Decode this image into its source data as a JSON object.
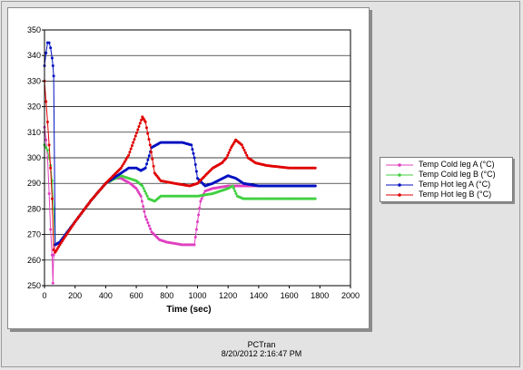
{
  "footer": {
    "app_name": "PCTran",
    "timestamp": "8/20/2012 2:16:47 PM"
  },
  "chart_data": {
    "type": "line",
    "title": "",
    "xlabel": "Time (sec)",
    "ylabel": "",
    "xlim": [
      0,
      2000
    ],
    "ylim": [
      250,
      350
    ],
    "xticks": [
      0,
      200,
      400,
      600,
      800,
      1000,
      1200,
      1400,
      1600,
      1800,
      2000
    ],
    "yticks": [
      250,
      260,
      270,
      280,
      290,
      300,
      310,
      320,
      330,
      340,
      350
    ],
    "grid": "horizontal",
    "legend_position": "right",
    "series": [
      {
        "name": "Temp Cold leg A (°C)",
        "color": "#e040c0",
        "marker": "dot",
        "points": [
          [
            0,
            312
          ],
          [
            10,
            307
          ],
          [
            20,
            300
          ],
          [
            30,
            286
          ],
          [
            40,
            272
          ],
          [
            50,
            262
          ],
          [
            55,
            251
          ],
          [
            60,
            262
          ],
          [
            70,
            266
          ],
          [
            100,
            267
          ],
          [
            200,
            275
          ],
          [
            300,
            283
          ],
          [
            400,
            290
          ],
          [
            450,
            292
          ],
          [
            500,
            292
          ],
          [
            560,
            290
          ],
          [
            600,
            288
          ],
          [
            630,
            285
          ],
          [
            660,
            277
          ],
          [
            700,
            271
          ],
          [
            750,
            268
          ],
          [
            800,
            267
          ],
          [
            900,
            266
          ],
          [
            980,
            266
          ],
          [
            1000,
            275
          ],
          [
            1020,
            283
          ],
          [
            1050,
            287
          ],
          [
            1100,
            288
          ],
          [
            1200,
            289
          ],
          [
            1300,
            289
          ],
          [
            1400,
            289
          ],
          [
            1600,
            289
          ],
          [
            1770,
            289
          ]
        ]
      },
      {
        "name": "Temp Cold leg B (°C)",
        "color": "#40d040",
        "marker": "dot",
        "points": [
          [
            0,
            305
          ],
          [
            10,
            304
          ],
          [
            20,
            303
          ],
          [
            30,
            300
          ],
          [
            40,
            297
          ],
          [
            50,
            291
          ],
          [
            60,
            280
          ],
          [
            70,
            266
          ],
          [
            100,
            267
          ],
          [
            200,
            275
          ],
          [
            300,
            283
          ],
          [
            400,
            290
          ],
          [
            500,
            293
          ],
          [
            550,
            292
          ],
          [
            600,
            291
          ],
          [
            640,
            289
          ],
          [
            680,
            284
          ],
          [
            720,
            283
          ],
          [
            760,
            285
          ],
          [
            850,
            285
          ],
          [
            1000,
            285
          ],
          [
            1100,
            286
          ],
          [
            1200,
            288
          ],
          [
            1230,
            289
          ],
          [
            1260,
            285
          ],
          [
            1300,
            284
          ],
          [
            1500,
            284
          ],
          [
            1770,
            284
          ]
        ]
      },
      {
        "name": "Temp Hot leg A (°C)",
        "color": "#0010c0",
        "marker": "dot",
        "points": [
          [
            0,
            336
          ],
          [
            10,
            341
          ],
          [
            20,
            345
          ],
          [
            30,
            345
          ],
          [
            40,
            343
          ],
          [
            50,
            339
          ],
          [
            55,
            336
          ],
          [
            60,
            332
          ],
          [
            70,
            266
          ],
          [
            100,
            267
          ],
          [
            200,
            275
          ],
          [
            300,
            283
          ],
          [
            400,
            290
          ],
          [
            500,
            294
          ],
          [
            550,
            296
          ],
          [
            600,
            296
          ],
          [
            630,
            295
          ],
          [
            660,
            296
          ],
          [
            700,
            304
          ],
          [
            760,
            306
          ],
          [
            900,
            306
          ],
          [
            960,
            305
          ],
          [
            980,
            300
          ],
          [
            1000,
            292
          ],
          [
            1050,
            289
          ],
          [
            1100,
            290
          ],
          [
            1200,
            293
          ],
          [
            1250,
            292
          ],
          [
            1300,
            290
          ],
          [
            1400,
            289
          ],
          [
            1600,
            289
          ],
          [
            1770,
            289
          ]
        ]
      },
      {
        "name": "Temp Hot leg B (°C)",
        "color": "#e00000",
        "marker": "dot",
        "points": [
          [
            0,
            330
          ],
          [
            10,
            322
          ],
          [
            20,
            314
          ],
          [
            30,
            305
          ],
          [
            40,
            296
          ],
          [
            50,
            284
          ],
          [
            60,
            264
          ],
          [
            70,
            263
          ],
          [
            100,
            266
          ],
          [
            200,
            275
          ],
          [
            300,
            283
          ],
          [
            400,
            290
          ],
          [
            500,
            296
          ],
          [
            550,
            301
          ],
          [
            580,
            306
          ],
          [
            610,
            311
          ],
          [
            640,
            316
          ],
          [
            660,
            314
          ],
          [
            690,
            305
          ],
          [
            720,
            294
          ],
          [
            760,
            291
          ],
          [
            850,
            290
          ],
          [
            950,
            289
          ],
          [
            1000,
            290
          ],
          [
            1050,
            293
          ],
          [
            1100,
            296
          ],
          [
            1160,
            298
          ],
          [
            1190,
            300
          ],
          [
            1220,
            304
          ],
          [
            1250,
            307
          ],
          [
            1290,
            305
          ],
          [
            1330,
            300
          ],
          [
            1380,
            298
          ],
          [
            1450,
            297
          ],
          [
            1600,
            296
          ],
          [
            1770,
            296
          ]
        ]
      }
    ]
  }
}
